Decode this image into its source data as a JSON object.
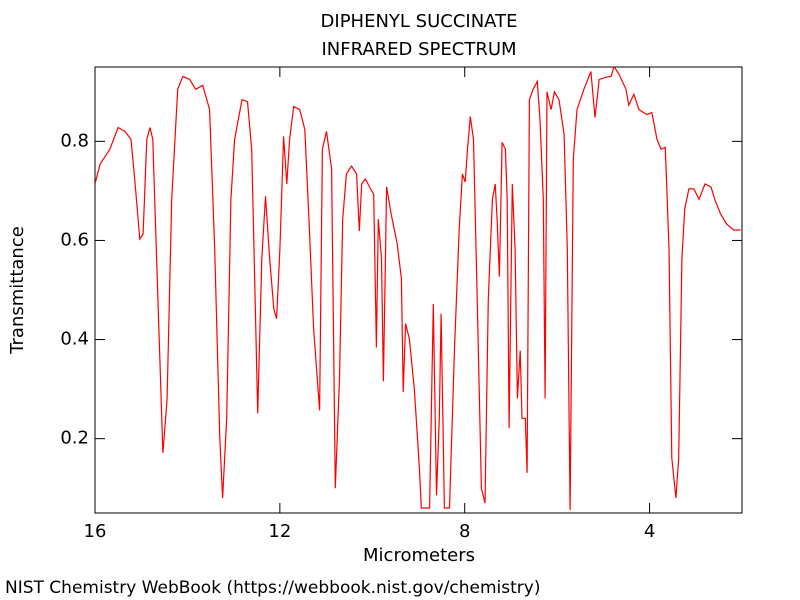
{
  "chart_data": {
    "type": "line",
    "title": "DIPHENYL SUCCINATE",
    "subtitle": "INFRARED SPECTRUM",
    "x_label": "Micrometers",
    "y_label": "Transmittance",
    "credit": "NIST Chemistry WebBook (https://webbook.nist.gov/chemistry)",
    "xlim": [
      16,
      2
    ],
    "ylim": [
      0.05,
      0.95
    ],
    "xticks": [
      16,
      12,
      8,
      4
    ],
    "yticks": [
      0.2,
      0.4,
      0.6,
      0.8
    ],
    "grid": false,
    "series": [
      {
        "color": "#ff0000",
        "x": [
          16.0,
          15.89,
          15.68,
          15.5,
          15.35,
          15.22,
          15.14,
          15.03,
          14.96,
          14.88,
          14.81,
          14.75,
          14.64,
          14.53,
          14.44,
          14.34,
          14.21,
          14.1,
          13.95,
          13.82,
          13.67,
          13.52,
          13.41,
          13.3,
          13.24,
          13.15,
          13.06,
          12.98,
          12.82,
          12.7,
          12.61,
          12.52,
          12.48,
          12.39,
          12.31,
          12.22,
          12.13,
          12.07,
          12.0,
          11.92,
          11.85,
          11.79,
          11.7,
          11.57,
          11.46,
          11.36,
          11.27,
          11.14,
          11.08,
          10.99,
          10.88,
          10.8,
          10.71,
          10.64,
          10.56,
          10.45,
          10.34,
          10.28,
          10.23,
          10.15,
          10.06,
          9.97,
          9.91,
          9.87,
          9.8,
          9.76,
          9.69,
          9.59,
          9.46,
          9.37,
          9.33,
          9.28,
          9.2,
          9.09,
          8.98,
          8.94,
          8.76,
          8.68,
          8.61,
          8.55,
          8.51,
          8.44,
          8.33,
          8.22,
          8.12,
          8.05,
          7.99,
          7.94,
          7.88,
          7.81,
          7.73,
          7.64,
          7.56,
          7.49,
          7.4,
          7.34,
          7.3,
          7.25,
          7.19,
          7.12,
          7.08,
          7.04,
          6.97,
          6.91,
          6.86,
          6.8,
          6.76,
          6.69,
          6.65,
          6.6,
          6.52,
          6.43,
          6.37,
          6.3,
          6.26,
          6.22,
          6.13,
          6.06,
          5.96,
          5.85,
          5.78,
          5.72,
          5.65,
          5.57,
          5.42,
          5.27,
          5.18,
          5.09,
          4.96,
          4.83,
          4.77,
          4.66,
          4.51,
          4.45,
          4.34,
          4.23,
          4.06,
          3.95,
          3.84,
          3.75,
          3.66,
          3.58,
          3.52,
          3.43,
          3.37,
          3.3,
          3.24,
          3.15,
          3.04,
          2.93,
          2.8,
          2.67,
          2.59,
          2.46,
          2.33,
          2.18,
          2.03
        ],
        "values": [
          0.714,
          0.754,
          0.784,
          0.828,
          0.82,
          0.804,
          0.724,
          0.603,
          0.613,
          0.804,
          0.828,
          0.804,
          0.482,
          0.171,
          0.281,
          0.683,
          0.905,
          0.931,
          0.925,
          0.905,
          0.913,
          0.864,
          0.583,
          0.201,
          0.08,
          0.241,
          0.683,
          0.804,
          0.884,
          0.88,
          0.784,
          0.422,
          0.251,
          0.563,
          0.689,
          0.563,
          0.462,
          0.442,
          0.583,
          0.81,
          0.714,
          0.804,
          0.87,
          0.864,
          0.824,
          0.623,
          0.422,
          0.257,
          0.784,
          0.82,
          0.744,
          0.1,
          0.321,
          0.643,
          0.734,
          0.75,
          0.734,
          0.619,
          0.714,
          0.724,
          0.708,
          0.693,
          0.384,
          0.643,
          0.563,
          0.316,
          0.708,
          0.653,
          0.593,
          0.523,
          0.294,
          0.432,
          0.402,
          0.301,
          0.141,
          0.06,
          0.06,
          0.472,
          0.086,
          0.241,
          0.452,
          0.06,
          0.06,
          0.382,
          0.623,
          0.734,
          0.718,
          0.784,
          0.85,
          0.804,
          0.482,
          0.1,
          0.07,
          0.482,
          0.683,
          0.714,
          0.643,
          0.527,
          0.798,
          0.784,
          0.683,
          0.221,
          0.714,
          0.583,
          0.281,
          0.378,
          0.241,
          0.241,
          0.131,
          0.884,
          0.905,
          0.921,
          0.844,
          0.683,
          0.281,
          0.9,
          0.864,
          0.9,
          0.884,
          0.814,
          0.583,
          0.056,
          0.764,
          0.864,
          0.905,
          0.941,
          0.848,
          0.925,
          0.929,
          0.931,
          0.951,
          0.935,
          0.905,
          0.873,
          0.895,
          0.864,
          0.854,
          0.858,
          0.804,
          0.784,
          0.788,
          0.583,
          0.161,
          0.08,
          0.161,
          0.563,
          0.663,
          0.704,
          0.704,
          0.683,
          0.714,
          0.708,
          0.683,
          0.653,
          0.633,
          0.621,
          0.621
        ]
      }
    ]
  }
}
